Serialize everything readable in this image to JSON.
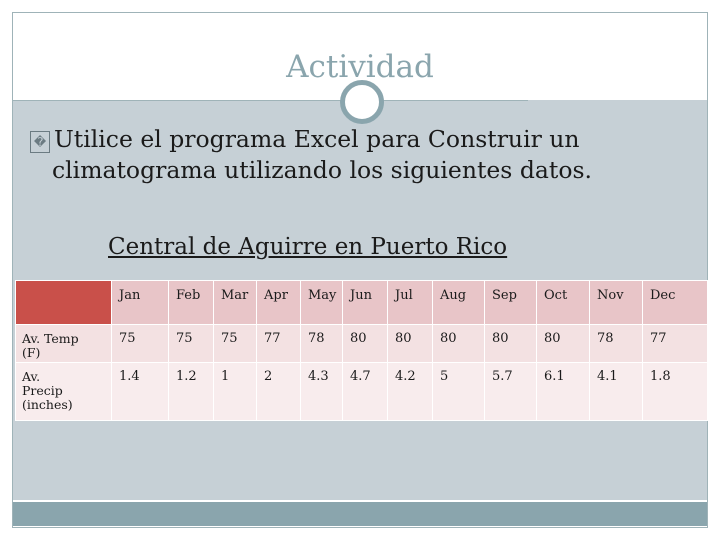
{
  "slide": {
    "title": "Actividad",
    "bullet_line1": "Utilice el programa Excel para Construir un",
    "bullet_line2": "climatograma utilizando los siguientes datos.",
    "bullet_glyph": "�",
    "subtitle": "Central de Aguirre  en Puerto Rico"
  },
  "table": {
    "headers": [
      "Jan",
      "Feb",
      "Mar",
      "Apr",
      "May",
      "Jun",
      "Jul",
      "Aug",
      "Sep",
      "Oct",
      "Nov",
      "Dec"
    ],
    "rows": [
      {
        "label_a": "Av. Temp",
        "label_b": "(F)",
        "label_c": "",
        "values": [
          "75",
          "75",
          "75",
          "77",
          "78",
          "80",
          "80",
          "80",
          "80",
          "80",
          "78",
          "77"
        ]
      },
      {
        "label_a": "Av.",
        "label_b": "Precip",
        "label_c": "(inches)",
        "values": [
          "1.4",
          "1.2",
          "1",
          "2",
          "4.3",
          "4.7",
          "4.2",
          "5",
          "5.7",
          "6.1",
          "4.1",
          "1.8"
        ]
      }
    ]
  },
  "colors": {
    "accent": "#8aa5ad",
    "band": "#c6d0d6",
    "table_corner": "#c9504a",
    "table_head": "#e8c5c8"
  }
}
